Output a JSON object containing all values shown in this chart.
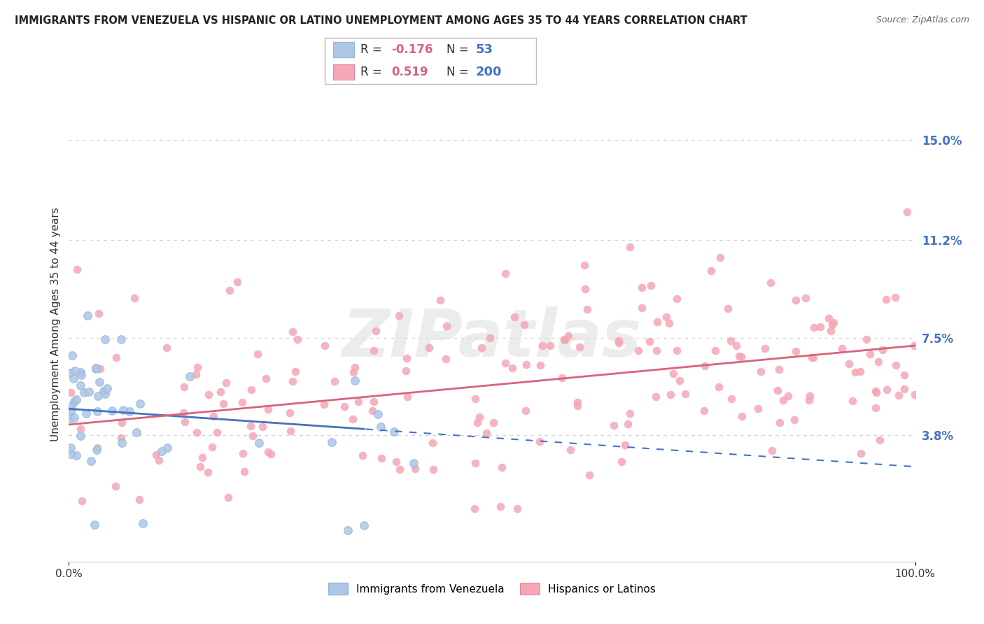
{
  "title": "IMMIGRANTS FROM VENEZUELA VS HISPANIC OR LATINO UNEMPLOYMENT AMONG AGES 35 TO 44 YEARS CORRELATION CHART",
  "source": "Source: ZipAtlas.com",
  "ylabel": "Unemployment Among Ages 35 to 44 years",
  "xlim": [
    0,
    100
  ],
  "ylim": [
    -1,
    17
  ],
  "yticks": [
    3.8,
    7.5,
    11.2,
    15.0
  ],
  "ytick_labels": [
    "3.8%",
    "7.5%",
    "11.2%",
    "15.0%"
  ],
  "xtick_labels": [
    "0.0%",
    "100.0%"
  ],
  "watermark_text": "ZIPatlas",
  "series": [
    {
      "name": "Immigrants from Venezuela",
      "R": -0.176,
      "N": 53,
      "dot_color": "#aec6e8",
      "trend_color": "#4472c4",
      "slope": -0.022,
      "intercept": 4.8,
      "solid_x_end": 35
    },
    {
      "name": "Hispanics or Latinos",
      "R": 0.519,
      "N": 200,
      "dot_color": "#f4a7b4",
      "trend_color": "#d9637a",
      "slope": 0.03,
      "intercept": 4.2,
      "solid_x_end": 100
    }
  ],
  "legend_box": {
    "R_label_color": "#d9637a",
    "N_label_color": "#4472c4",
    "text_color": "#333333"
  },
  "background_color": "#ffffff",
  "grid_color": "#d0d0d0"
}
